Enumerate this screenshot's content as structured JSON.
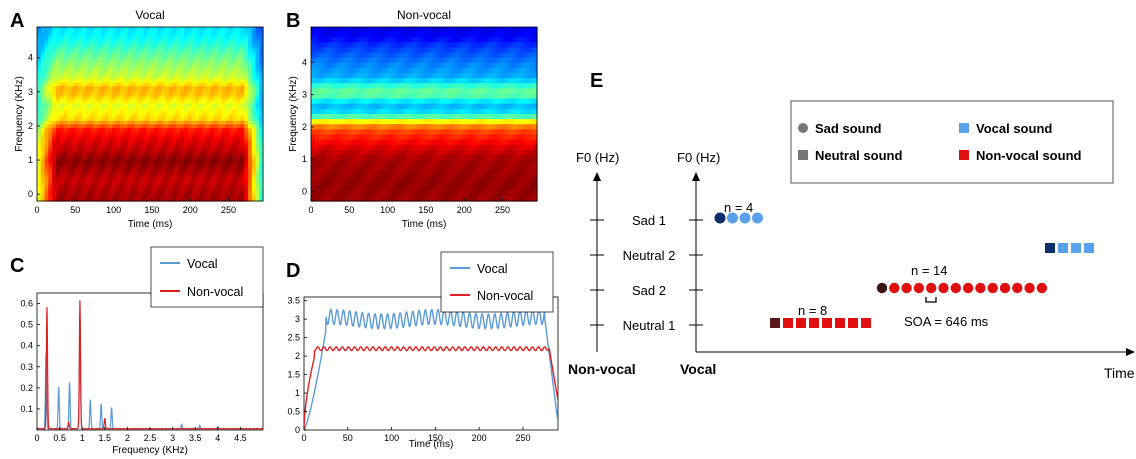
{
  "panels": {
    "A": {
      "label": "A",
      "title": "Vocal",
      "xlabel": "Time (ms)",
      "ylabel": "Frequency (KHz)"
    },
    "B": {
      "label": "B",
      "title": "Non-vocal",
      "xlabel": "Time (ms)",
      "ylabel": "Frequency (KHz)"
    },
    "C": {
      "label": "C",
      "xlabel": "Frequency (KHz)"
    },
    "D": {
      "label": "D",
      "xlabel": "Time (ms)"
    },
    "E": {
      "label": "E"
    }
  },
  "colors": {
    "vocal": "#5b9bd5",
    "nonvocal": "#e02020",
    "dark_blue": "#0d2d6b",
    "light_blue": "#5aa0ea",
    "red": "#e01010",
    "dark_red": "#5a1a1a",
    "dark_maroon": "#3a1414"
  },
  "chart_data": [
    {
      "type": "heatmap",
      "panel": "A",
      "title": "Vocal",
      "xlabel": "Time (ms)",
      "ylabel": "Frequency (KHz)",
      "xlim": [
        0,
        295
      ],
      "ylim": [
        -0.2,
        4.9
      ],
      "xticks": [
        "0",
        "50",
        "100",
        "150",
        "200",
        "250"
      ],
      "yticks": [
        "0",
        "1",
        "2",
        "3",
        "4"
      ],
      "colormap": "jet",
      "freq_khz": [
        0,
        0.4,
        0.8,
        1.0,
        1.2,
        1.6,
        1.9,
        2.2,
        2.6,
        2.9,
        3.1,
        3.4,
        3.8,
        4.2,
        4.6,
        4.9
      ],
      "intensity_profile": [
        0.96,
        0.93,
        0.97,
        0.99,
        0.95,
        0.9,
        0.85,
        0.66,
        0.6,
        0.68,
        0.7,
        0.58,
        0.52,
        0.45,
        0.38,
        0.35
      ],
      "onset_ms": 25,
      "offset_ms": 270
    },
    {
      "type": "heatmap",
      "panel": "B",
      "title": "Non-vocal",
      "xlabel": "Time (ms)",
      "ylabel": "Frequency (KHz)",
      "xlim": [
        0,
        295
      ],
      "ylim": [
        -0.3,
        5.1
      ],
      "xticks": [
        "0",
        "50",
        "100",
        "150",
        "200",
        "250"
      ],
      "yticks": [
        "0",
        "1",
        "2",
        "3",
        "4"
      ],
      "colormap": "jet",
      "freq_khz": [
        -0.3,
        0.2,
        0.6,
        1.0,
        1.3,
        1.6,
        1.9,
        2.1,
        2.4,
        2.7,
        3.0,
        3.2,
        3.5,
        3.9,
        4.2,
        4.5,
        4.8,
        5.1
      ],
      "intensity_profile": [
        0.97,
        0.98,
        0.97,
        0.96,
        0.92,
        0.86,
        0.8,
        0.7,
        0.36,
        0.3,
        0.48,
        0.46,
        0.3,
        0.26,
        0.22,
        0.18,
        0.12,
        0.1
      ]
    },
    {
      "type": "line",
      "panel": "C",
      "xlabel": "Frequency (KHz)",
      "xlim": [
        0,
        5
      ],
      "ylim": [
        0,
        0.65
      ],
      "xticks": [
        "0",
        "0.5",
        "1",
        "1.5",
        "2",
        "2.5",
        "3",
        "3.5",
        "4",
        "4.5"
      ],
      "yticks": [
        "0.1",
        "0.2",
        "0.3",
        "0.4",
        "0.5",
        "0.6"
      ],
      "legend": "top-right",
      "series": [
        {
          "name": "Vocal",
          "peaks": [
            [
              0.2,
              0.36
            ],
            [
              0.48,
              0.2
            ],
            [
              0.72,
              0.22
            ],
            [
              0.95,
              0.5
            ],
            [
              1.18,
              0.14
            ],
            [
              1.42,
              0.12
            ],
            [
              1.65,
              0.1
            ],
            [
              3.2,
              0.02
            ],
            [
              3.6,
              0.015
            ],
            [
              4.0,
              0.012
            ]
          ]
        },
        {
          "name": "Non-vocal",
          "peaks": [
            [
              0.22,
              0.58
            ],
            [
              0.95,
              0.61
            ],
            [
              1.5,
              0.05
            ],
            [
              0.7,
              0.03
            ]
          ]
        }
      ]
    },
    {
      "type": "line",
      "panel": "D",
      "xlabel": "Time (ms)",
      "xlim": [
        0,
        290
      ],
      "ylim": [
        0,
        3.6
      ],
      "xticks": [
        "0",
        "50",
        "100",
        "150",
        "200",
        "250"
      ],
      "yticks": [
        "0",
        "0.5",
        "1",
        "1.5",
        "2",
        "2.5",
        "3",
        "3.5"
      ],
      "legend": "top-right",
      "series": [
        {
          "name": "Vocal",
          "plateau": 3.0,
          "ripple": 0.2,
          "onset_end_ms": 25,
          "offset_start_ms": 275,
          "end_value": 0.2
        },
        {
          "name": "Non-vocal",
          "plateau": 2.2,
          "ripple": 0.05,
          "onset_end_ms": 12,
          "offset_start_ms": 280,
          "end_value": 0.8
        }
      ]
    },
    {
      "type": "diagram",
      "panel": "E",
      "legend": [
        {
          "label": "Sad sound",
          "shape": "circle",
          "color": "#777777"
        },
        {
          "label": "Vocal sound",
          "shape": "square",
          "color": "#5aa0ea"
        },
        {
          "label": "Neutral sound",
          "shape": "square",
          "color": "#777777"
        },
        {
          "label": "Non-vocal sound",
          "shape": "square",
          "color": "#e01010"
        }
      ],
      "axis_left_title": "F0 (Hz)",
      "axis_right_title": "F0 (Hz)",
      "levels": [
        "Sad 1",
        "Neutral 2",
        "Sad 2",
        "Neutral 1"
      ],
      "bottom_left": "Non-vocal",
      "bottom_right": "Vocal",
      "x_end_label": "Time",
      "annotations": {
        "n4": "n = 4",
        "n14": "n = 14",
        "n8": "n = 8",
        "soa": "SOA = 646 ms"
      },
      "sequences": [
        {
          "level": "Sad 1",
          "count": 4,
          "shape": "circle",
          "kind": "vocal"
        },
        {
          "level": "Neutral 2",
          "count": 4,
          "shape": "square",
          "kind": "vocal"
        },
        {
          "level": "Sad 2",
          "count": 14,
          "shape": "circle",
          "kind": "nonvocal"
        },
        {
          "level": "Neutral 1",
          "count": 8,
          "shape": "square",
          "kind": "nonvocal"
        }
      ]
    }
  ]
}
